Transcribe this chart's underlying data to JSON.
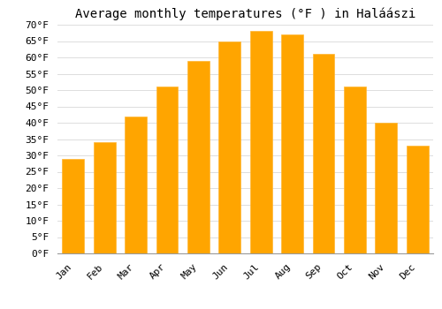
{
  "title": "Average monthly temperatures (°F ) in Haláászi",
  "months": [
    "Jan",
    "Feb",
    "Mar",
    "Apr",
    "May",
    "Jun",
    "Jul",
    "Aug",
    "Sep",
    "Oct",
    "Nov",
    "Dec"
  ],
  "values": [
    29,
    34,
    42,
    51,
    59,
    65,
    68,
    67,
    61,
    51,
    40,
    33
  ],
  "bar_color": "#FFA500",
  "bar_edge_color": "#FFB733",
  "ylim": [
    0,
    70
  ],
  "yticks": [
    0,
    5,
    10,
    15,
    20,
    25,
    30,
    35,
    40,
    45,
    50,
    55,
    60,
    65,
    70
  ],
  "background_color": "#FFFFFF",
  "grid_color": "#DDDDDD",
  "title_fontsize": 10,
  "tick_fontsize": 8,
  "font_family": "monospace"
}
